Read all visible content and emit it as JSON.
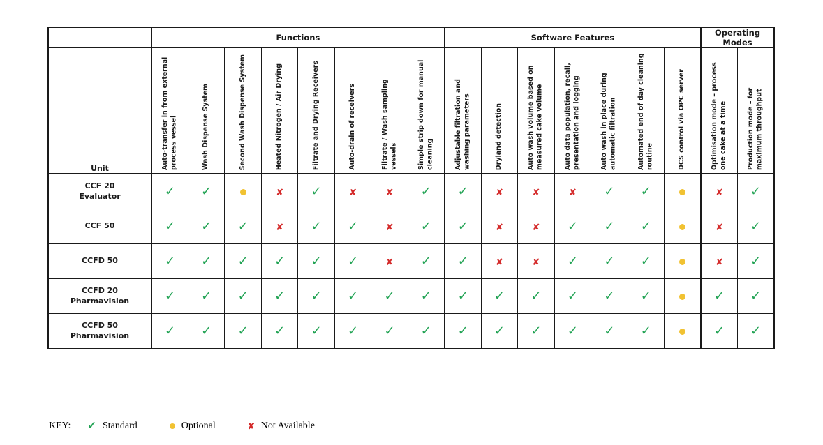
{
  "colors": {
    "standard": "#22a354",
    "optional": "#f1c232",
    "not_available": "#d42a2a"
  },
  "icons": {
    "standard": "✓",
    "not_available": "✘"
  },
  "table": {
    "unit_header": "Unit",
    "groups": [
      {
        "label": "Functions",
        "span": 8
      },
      {
        "label": "Software Features",
        "span": 7
      },
      {
        "label": "Operating Modes",
        "span": 2
      }
    ],
    "columns": [
      "Auto-transfer in from external process vessel",
      "Wash Dispense System",
      "Second Wash Dispense System",
      "Heated Nitrogen / Air Drying",
      "Filtrate and Drying Receivers",
      "Auto-drain of receivers",
      "Filtrate / Wash sampling vessels",
      "Simple strip down for manual cleaning",
      "Adjustable filtration and washing parameters",
      "Dryland detection",
      "Auto wash volume based on measured cake volume",
      "Auto data population, recall, presentation and logging",
      "Auto wash in place during automatic filtration",
      "Automated end of day cleaning routine",
      "DCS control via OPC server",
      "Optimisation mode – process one cake at a time",
      "Production mode – for maximum throughput"
    ],
    "rows": [
      {
        "unit": "CCF 20\nEvaluator",
        "cells": [
          "S",
          "S",
          "O",
          "N",
          "S",
          "N",
          "N",
          "S",
          "S",
          "N",
          "N",
          "N",
          "S",
          "S",
          "O",
          "N",
          "S"
        ]
      },
      {
        "unit": "CCF 50",
        "cells": [
          "S",
          "S",
          "S",
          "N",
          "S",
          "S",
          "N",
          "S",
          "S",
          "N",
          "N",
          "S",
          "S",
          "S",
          "O",
          "N",
          "S"
        ]
      },
      {
        "unit": "CCFD 50",
        "cells": [
          "S",
          "S",
          "S",
          "S",
          "S",
          "S",
          "N",
          "S",
          "S",
          "N",
          "N",
          "S",
          "S",
          "S",
          "O",
          "N",
          "S"
        ]
      },
      {
        "unit": "CCFD 20\nPharmavision",
        "cells": [
          "S",
          "S",
          "S",
          "S",
          "S",
          "S",
          "S",
          "S",
          "S",
          "S",
          "S",
          "S",
          "S",
          "S",
          "O",
          "S",
          "S"
        ]
      },
      {
        "unit": "CCFD 50\nPharmavision",
        "cells": [
          "S",
          "S",
          "S",
          "S",
          "S",
          "S",
          "S",
          "S",
          "S",
          "S",
          "S",
          "S",
          "S",
          "S",
          "O",
          "S",
          "S"
        ]
      }
    ]
  },
  "key": {
    "label": "KEY:",
    "items": [
      {
        "status": "standard",
        "label": "Standard"
      },
      {
        "status": "optional",
        "label": "Optional"
      },
      {
        "status": "not_available",
        "label": "Not Available"
      }
    ]
  }
}
